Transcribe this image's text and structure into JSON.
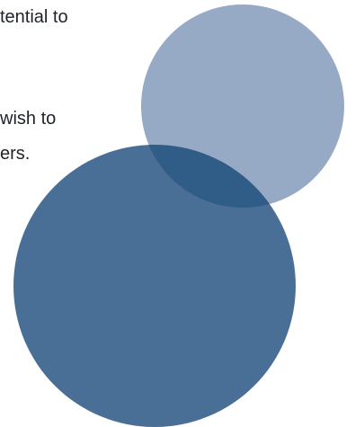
{
  "text": {
    "line1": "tential to",
    "line2": "wish to",
    "line3": "ers."
  },
  "diagram": {
    "type": "venn",
    "circles": [
      {
        "name": "upper-circle",
        "color": "#97aac5"
      },
      {
        "name": "lower-circle",
        "color": "#4a6f96"
      }
    ],
    "overlap_color": "#2f5d88"
  }
}
